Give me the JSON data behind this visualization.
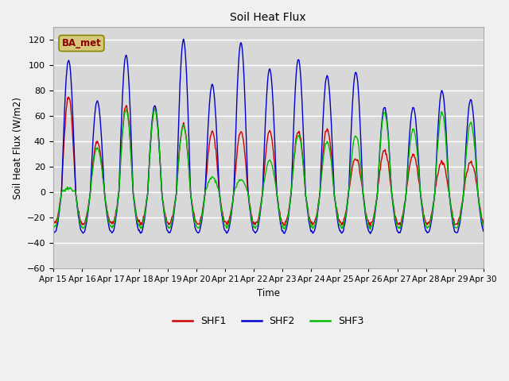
{
  "title": "Soil Heat Flux",
  "ylabel": "Soil Heat Flux (W/m2)",
  "xlabel": "Time",
  "ylim": [
    -60,
    130
  ],
  "yticks": [
    -60,
    -40,
    -20,
    0,
    20,
    40,
    60,
    80,
    100,
    120
  ],
  "n_days": 15,
  "pts_per_day": 48,
  "x_tick_labels": [
    "Apr 15",
    "Apr 16",
    "Apr 17",
    "Apr 18",
    "Apr 19",
    "Apr 20",
    "Apr 21",
    "Apr 22",
    "Apr 23",
    "Apr 24",
    "Apr 25",
    "Apr 26",
    "Apr 27",
    "Apr 28",
    "Apr 29",
    "Apr 30"
  ],
  "color_shf1": "#cc0000",
  "color_shf2": "#0000cc",
  "color_shf3": "#00bb00",
  "plot_bg_color": "#d8d8d8",
  "fig_bg_color": "#f0f0f0",
  "annotation_text": "BA_met",
  "annotation_bg": "#d4c87a",
  "annotation_text_color": "#8b0000",
  "legend_labels": [
    "SHF1",
    "SHF2",
    "SHF3"
  ],
  "day_amps_shf2": [
    104,
    72,
    108,
    68,
    120,
    85,
    118,
    97,
    105,
    92,
    95,
    67,
    67,
    80,
    73
  ],
  "day_amps_shf1": [
    75,
    40,
    68,
    65,
    53,
    48,
    48,
    48,
    48,
    50,
    27,
    33,
    30,
    24,
    24
  ],
  "day_amps_shf3": [
    3,
    35,
    65,
    65,
    52,
    12,
    10,
    25,
    45,
    40,
    45,
    63,
    50,
    63,
    55
  ],
  "night_depth_shf1": -25,
  "night_depth_shf2": -32,
  "night_depth_shf3": -28,
  "linewidth": 1.0
}
